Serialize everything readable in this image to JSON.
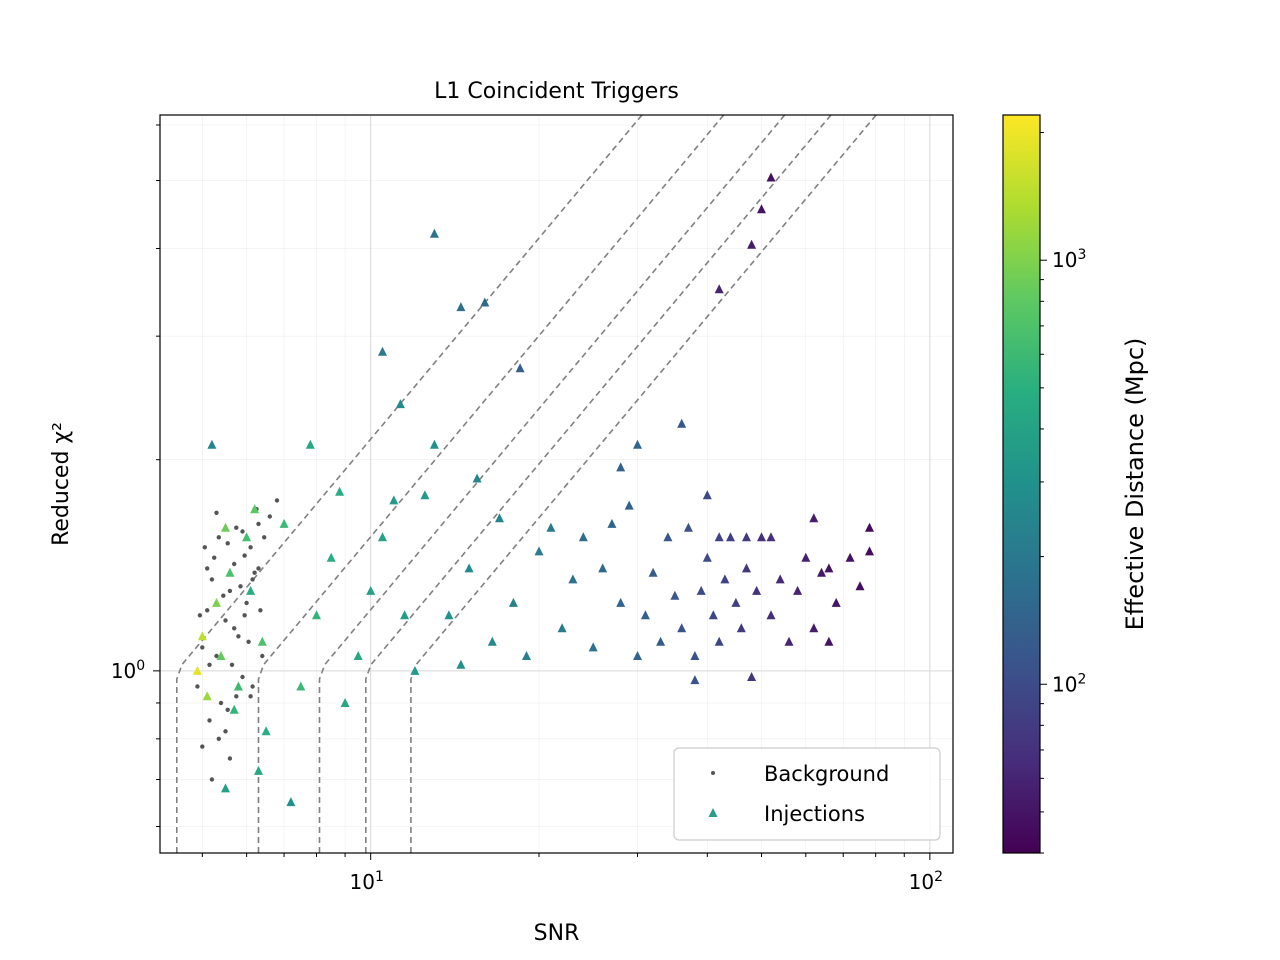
{
  "chart_data": {
    "type": "scatter",
    "title": "L1 Coincident Triggers",
    "xlabel": "SNR",
    "ylabel": "Reduced χ²",
    "xscale": "log",
    "yscale": "log",
    "xlim": [
      4.2,
      110
    ],
    "ylim": [
      0.55,
      6.2
    ],
    "x_ticks": [
      {
        "value": 10,
        "base": "10",
        "exp": "1"
      },
      {
        "value": 100,
        "base": "10",
        "exp": "2"
      }
    ],
    "y_ticks": [
      {
        "value": 1,
        "base": "10",
        "exp": "0"
      }
    ],
    "grid": true,
    "legend": {
      "position": "lower-right",
      "entries": [
        "Background",
        "Injections"
      ]
    },
    "colorbar": {
      "label": "Effective Distance (Mpc)",
      "scale": "log",
      "range": [
        40,
        2200
      ],
      "colormap": "viridis",
      "ticks": [
        {
          "value": 100,
          "base": "10",
          "exp": "2"
        },
        {
          "value": 1000,
          "base": "10",
          "exp": "3"
        }
      ]
    },
    "threshold_curves": {
      "style": "dashed",
      "color": "#808080",
      "snr_thresholds": [
        4.5,
        6.3,
        8.1,
        9.8,
        11.8
      ]
    },
    "series": [
      {
        "name": "Background",
        "marker": "dot",
        "color": "#555555",
        "points": [
          [
            4.9,
            0.95
          ],
          [
            5.0,
            1.08
          ],
          [
            5.1,
            1.22
          ],
          [
            5.2,
            1.35
          ],
          [
            5.3,
            1.05
          ],
          [
            5.4,
            0.9
          ],
          [
            5.5,
            1.18
          ],
          [
            5.6,
            1.3
          ],
          [
            5.7,
            1.42
          ],
          [
            5.8,
            1.12
          ],
          [
            5.9,
            0.98
          ],
          [
            6.0,
            1.25
          ],
          [
            6.1,
            1.5
          ],
          [
            6.2,
            1.38
          ],
          [
            6.3,
            1.62
          ],
          [
            5.05,
            1.5
          ],
          [
            5.15,
            0.85
          ],
          [
            5.25,
            1.45
          ],
          [
            5.35,
            1.55
          ],
          [
            5.45,
            1.28
          ],
          [
            5.55,
            0.88
          ],
          [
            5.65,
            1.02
          ],
          [
            5.75,
            1.6
          ],
          [
            5.85,
            1.32
          ],
          [
            5.95,
            1.46
          ],
          [
            6.05,
            1.1
          ],
          [
            6.15,
            0.95
          ],
          [
            6.25,
            1.7
          ],
          [
            6.35,
            1.22
          ],
          [
            6.45,
            1.55
          ],
          [
            5.0,
            0.78
          ],
          [
            5.1,
            1.4
          ],
          [
            5.3,
            1.68
          ],
          [
            5.5,
            0.82
          ],
          [
            5.7,
            1.15
          ],
          [
            5.9,
            1.58
          ],
          [
            6.1,
            0.92
          ],
          [
            6.3,
            1.4
          ],
          [
            5.2,
            0.7
          ],
          [
            5.6,
            0.75
          ],
          [
            4.95,
            1.2
          ],
          [
            5.15,
            1.02
          ],
          [
            5.35,
            0.8
          ],
          [
            5.55,
            1.52
          ],
          [
            5.75,
            0.92
          ],
          [
            5.95,
            1.2
          ],
          [
            6.15,
            1.35
          ],
          [
            6.4,
            1.05
          ],
          [
            6.6,
            1.66
          ],
          [
            6.8,
            1.75
          ]
        ]
      },
      {
        "name": "Injections",
        "marker": "triangle",
        "color_by": "effective_distance_mpc",
        "points": [
          [
            5.2,
            2.1,
            250
          ],
          [
            4.9,
            1.0,
            1900
          ],
          [
            5.0,
            1.12,
            1500
          ],
          [
            5.1,
            0.92,
            1200
          ],
          [
            5.3,
            1.25,
            1000
          ],
          [
            5.4,
            1.05,
            850
          ],
          [
            5.6,
            1.38,
            700
          ],
          [
            5.8,
            0.95,
            600
          ],
          [
            6.0,
            1.55,
            650
          ],
          [
            6.2,
            1.7,
            800
          ],
          [
            6.4,
            1.1,
            700
          ],
          [
            5.5,
            1.6,
            900
          ],
          [
            5.7,
            0.88,
            550
          ],
          [
            6.1,
            1.3,
            500
          ],
          [
            6.3,
            0.72,
            450
          ],
          [
            5.5,
            0.68,
            400
          ],
          [
            6.5,
            0.82,
            500
          ],
          [
            7.5,
            0.95,
            600
          ],
          [
            8.0,
            1.2,
            550
          ],
          [
            8.5,
            1.45,
            500
          ],
          [
            7.0,
            1.62,
            600
          ],
          [
            7.8,
            2.1,
            450
          ],
          [
            8.8,
            1.8,
            500
          ],
          [
            9.5,
            1.05,
            450
          ],
          [
            10.0,
            1.3,
            400
          ],
          [
            10.5,
            1.55,
            400
          ],
          [
            9.0,
            0.9,
            450
          ],
          [
            11.0,
            1.75,
            350
          ],
          [
            11.5,
            1.2,
            380
          ],
          [
            12.0,
            1.0,
            350
          ],
          [
            10.5,
            2.85,
            200
          ],
          [
            11.3,
            2.4,
            280
          ],
          [
            12.5,
            1.78,
            350
          ],
          [
            13.0,
            2.1,
            300
          ],
          [
            13.8,
            1.2,
            320
          ],
          [
            14.5,
            1.02,
            300
          ],
          [
            15.0,
            1.4,
            280
          ],
          [
            15.5,
            1.88,
            260
          ],
          [
            16.5,
            1.1,
            270
          ],
          [
            17.0,
            1.65,
            250
          ],
          [
            18.0,
            1.25,
            240
          ],
          [
            19.0,
            1.05,
            230
          ],
          [
            20.0,
            1.48,
            220
          ],
          [
            21.0,
            1.6,
            200
          ],
          [
            22.0,
            1.15,
            210
          ],
          [
            13.0,
            4.2,
            190
          ],
          [
            14.5,
            3.3,
            180
          ],
          [
            16.0,
            3.35,
            160
          ],
          [
            18.5,
            2.7,
            140
          ],
          [
            7.2,
            0.65,
            300
          ],
          [
            23.0,
            1.35,
            180
          ],
          [
            24.0,
            1.55,
            170
          ],
          [
            25.0,
            1.08,
            180
          ],
          [
            26.0,
            1.4,
            160
          ],
          [
            27.0,
            1.62,
            150
          ],
          [
            28.0,
            1.25,
            150
          ],
          [
            29.0,
            1.72,
            140
          ],
          [
            30.0,
            1.05,
            150
          ],
          [
            31.0,
            1.2,
            140
          ],
          [
            32.0,
            1.38,
            130
          ],
          [
            33.0,
            1.1,
            130
          ],
          [
            34.0,
            1.55,
            120
          ],
          [
            35.0,
            1.28,
            120
          ],
          [
            36.0,
            1.15,
            115
          ],
          [
            37.0,
            1.6,
            110
          ],
          [
            38.0,
            1.05,
            110
          ],
          [
            39.0,
            1.3,
            100
          ],
          [
            40.0,
            1.45,
            100
          ],
          [
            41.0,
            1.2,
            95
          ],
          [
            42.0,
            1.1,
            95
          ],
          [
            43.0,
            1.35,
            90
          ],
          [
            44.0,
            1.55,
            88
          ],
          [
            45.0,
            1.25,
            85
          ],
          [
            46.0,
            1.15,
            80
          ],
          [
            47.0,
            1.4,
            78
          ],
          [
            48.0,
            0.98,
            75
          ],
          [
            49.0,
            1.3,
            72
          ],
          [
            50.0,
            1.55,
            70
          ],
          [
            52.0,
            1.2,
            68
          ],
          [
            54.0,
            1.35,
            65
          ],
          [
            56.0,
            1.1,
            62
          ],
          [
            58.0,
            1.3,
            60
          ],
          [
            60.0,
            1.45,
            58
          ],
          [
            62.0,
            1.15,
            55
          ],
          [
            64.0,
            1.38,
            52
          ],
          [
            66.0,
            1.1,
            50
          ],
          [
            68.0,
            1.25,
            50
          ],
          [
            72.0,
            1.45,
            48
          ],
          [
            75.0,
            1.32,
            46
          ],
          [
            78.0,
            1.6,
            45
          ],
          [
            42.0,
            1.55,
            90
          ],
          [
            47.0,
            1.55,
            80
          ],
          [
            52.0,
            1.55,
            70
          ],
          [
            42.0,
            3.5,
            60
          ],
          [
            48.0,
            4.05,
            55
          ],
          [
            50.0,
            4.55,
            50
          ],
          [
            36.0,
            2.25,
            120
          ],
          [
            40.0,
            1.78,
            100
          ],
          [
            30.0,
            2.1,
            150
          ],
          [
            28.0,
            1.95,
            140
          ],
          [
            62.0,
            1.65,
            55
          ],
          [
            66.0,
            1.4,
            50
          ],
          [
            78.0,
            1.48,
            45
          ],
          [
            52.0,
            5.05,
            48
          ],
          [
            38.0,
            0.97,
            110
          ]
        ]
      }
    ]
  }
}
